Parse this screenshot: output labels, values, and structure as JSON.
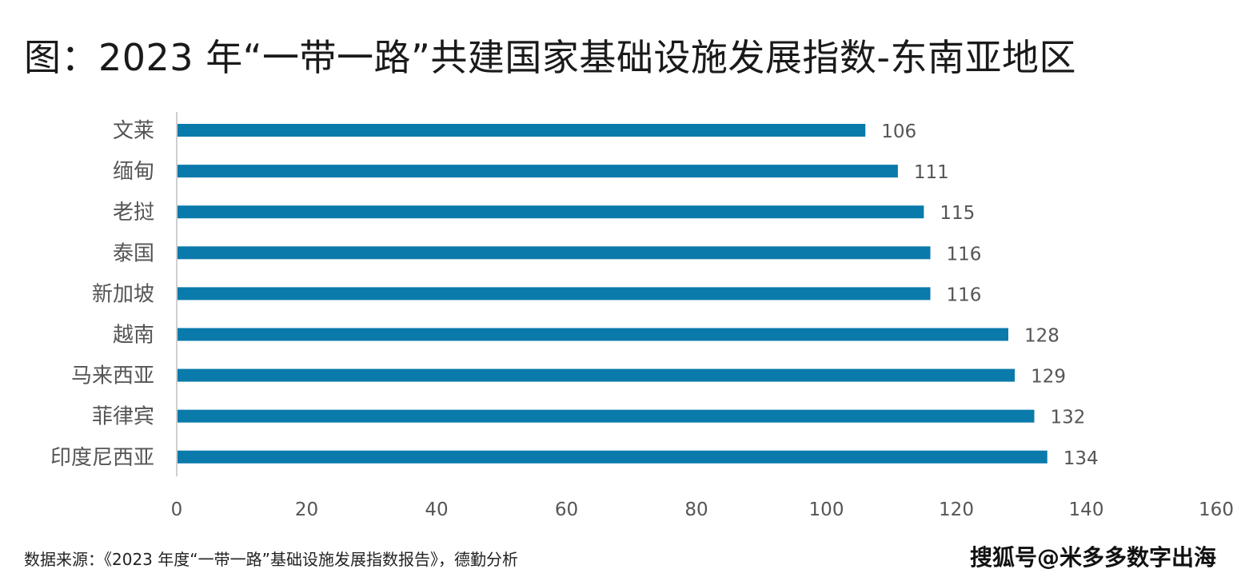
{
  "title": "图：2023 年“一带一路”共建国家基础设施发展指数-东南亚地区",
  "source": "数据来源：《2023 年度“一带一路”基础设施发展指数报告》，德勤分析",
  "watermark": "搜狐号@米多多数字出海",
  "colors": {
    "bar": "#0a7aab",
    "axis": "#bfbfbf",
    "label": "#555555"
  },
  "chart_data": {
    "type": "bar",
    "orientation": "horizontal",
    "categories": [
      "文莱",
      "缅甸",
      "老挝",
      "泰国",
      "新加坡",
      "越南",
      "马来西亚",
      "菲律宾",
      "印度尼西亚"
    ],
    "values": [
      106,
      111,
      115,
      116,
      116,
      128,
      129,
      132,
      134
    ],
    "xlim": [
      0,
      160
    ],
    "xticks": [
      0,
      20,
      40,
      60,
      80,
      100,
      120,
      140,
      160
    ],
    "data_labels": true,
    "grid": false
  }
}
